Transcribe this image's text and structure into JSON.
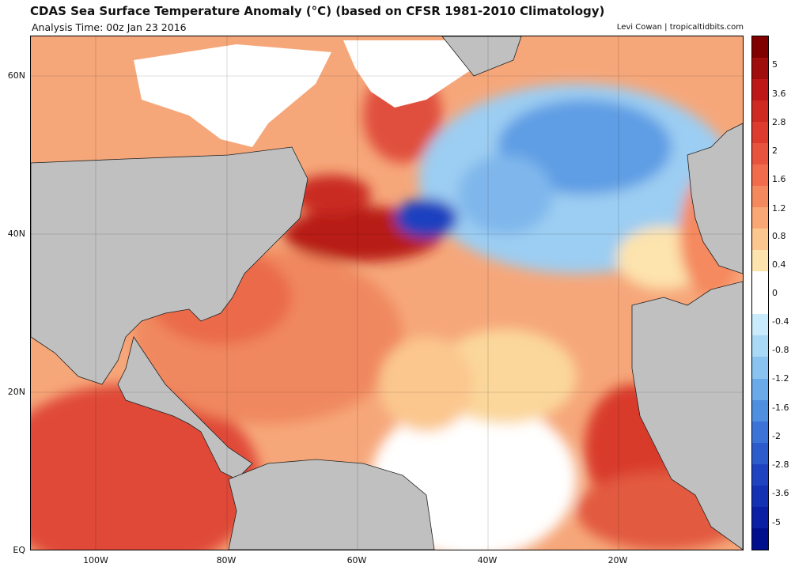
{
  "header": {
    "title": "CDAS Sea Surface Temperature Anomaly (°C) (based on CFSR 1981-2010 Climatology)",
    "subtitle": "Analysis Time: 00z Jan 23 2016",
    "credit": "Levi Cowan | tropicaltidbits.com"
  },
  "map": {
    "lat_labels": [
      "60N",
      "40N",
      "20N",
      "EQ"
    ],
    "lon_labels": [
      "100W",
      "80W",
      "60W",
      "40W",
      "20W"
    ],
    "land_color": "#c0c0c0",
    "ice_color": "#ffffff"
  },
  "colorbar": {
    "labels": [
      "5",
      "3.6",
      "2.8",
      "2",
      "1.6",
      "1.2",
      "0.8",
      "0.4",
      "0",
      "-0.4",
      "-0.8",
      "-1.2",
      "-1.6",
      "-2",
      "-2.8",
      "-3.6",
      "-5"
    ],
    "colors": [
      "#800000",
      "#a00d0d",
      "#be1717",
      "#cf2a22",
      "#dc3b2e",
      "#e8533e",
      "#f06c4c",
      "#f5895e",
      "#f9a875",
      "#fbc78f",
      "#fde3ad",
      "#ffffff",
      "#ffffff",
      "#c9ebfb",
      "#aad9f5",
      "#8ac3ef",
      "#6aaae8",
      "#4f8fe0",
      "#3b74d6",
      "#2c5bcc",
      "#1f43c0",
      "#1430b3",
      "#0a1fa3",
      "#020f8c"
    ]
  }
}
